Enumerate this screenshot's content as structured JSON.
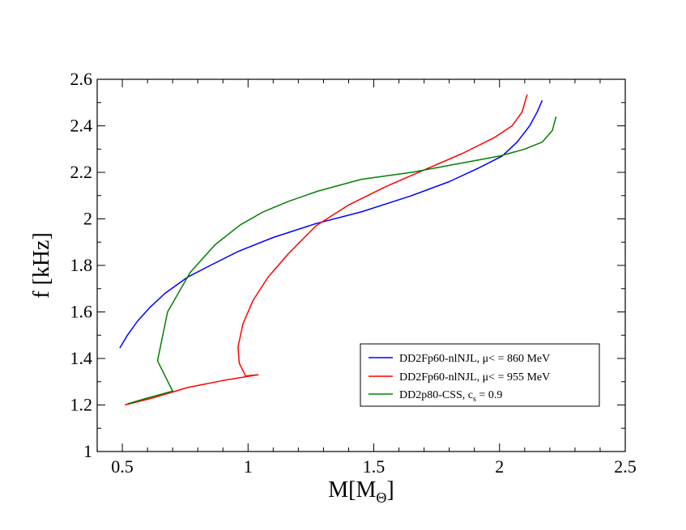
{
  "chart_data": {
    "type": "line",
    "title": "",
    "xlabel": {
      "main": "M[M",
      "sub": "Θ",
      "close": "]"
    },
    "ylabel": "f [kHz]",
    "xlim": [
      0.4,
      2.5
    ],
    "ylim": [
      1.0,
      2.6
    ],
    "xticks": [
      0.5,
      1,
      1.5,
      2,
      2.5
    ],
    "xtick_labels": [
      "0.5",
      "1",
      "1.5",
      "2",
      "2.5"
    ],
    "yticks": [
      1,
      1.2,
      1.4,
      1.6,
      1.8,
      2,
      2.2,
      2.4,
      2.6
    ],
    "ytick_labels": [
      "1",
      "1.2",
      "1.4",
      "1.6",
      "1.8",
      "2",
      "2.2",
      "2.4",
      "2.6"
    ],
    "grid": false,
    "legend_position": "bottom-right",
    "series": [
      {
        "name": "DD2Fp60-nlNJL, μ< = 860 MeV",
        "legend": {
          "main": "DD2Fp60-nlNJL, μ< = 860 MeV"
        },
        "color": "#0000ff",
        "points": [
          [
            0.49,
            1.445
          ],
          [
            0.52,
            1.5
          ],
          [
            0.56,
            1.56
          ],
          [
            0.61,
            1.62
          ],
          [
            0.67,
            1.68
          ],
          [
            0.76,
            1.75
          ],
          [
            0.85,
            1.8
          ],
          [
            0.96,
            1.86
          ],
          [
            1.1,
            1.92
          ],
          [
            1.27,
            1.98
          ],
          [
            1.45,
            2.03
          ],
          [
            1.65,
            2.1
          ],
          [
            1.8,
            2.16
          ],
          [
            1.92,
            2.22
          ],
          [
            2.01,
            2.27
          ],
          [
            2.07,
            2.33
          ],
          [
            2.12,
            2.4
          ],
          [
            2.15,
            2.46
          ],
          [
            2.17,
            2.51
          ]
        ]
      },
      {
        "name": "DD2Fp60-nlNJL, μ< = 955 MeV",
        "legend": {
          "main": "DD2Fp60-nlNJL, μ< = 955 MeV"
        },
        "color": "#ff0000",
        "points": [
          [
            0.51,
            1.2
          ],
          [
            0.62,
            1.23
          ],
          [
            0.76,
            1.275
          ],
          [
            0.9,
            1.305
          ],
          [
            1.04,
            1.33
          ],
          [
            0.99,
            1.325
          ],
          [
            0.965,
            1.38
          ],
          [
            0.96,
            1.45
          ],
          [
            0.98,
            1.55
          ],
          [
            1.02,
            1.65
          ],
          [
            1.08,
            1.75
          ],
          [
            1.16,
            1.85
          ],
          [
            1.27,
            1.97
          ],
          [
            1.4,
            2.06
          ],
          [
            1.55,
            2.14
          ],
          [
            1.7,
            2.21
          ],
          [
            1.85,
            2.28
          ],
          [
            1.98,
            2.35
          ],
          [
            2.05,
            2.4
          ],
          [
            2.09,
            2.46
          ],
          [
            2.11,
            2.535
          ]
        ]
      },
      {
        "name": "DD2p80-CSS, c_s = 0.9",
        "legend": {
          "main": "DD2p80-CSS, c",
          "sub": "s",
          "rest": " = 0.9"
        },
        "color": "#008000",
        "points": [
          [
            0.52,
            1.205
          ],
          [
            0.6,
            1.23
          ],
          [
            0.7,
            1.26
          ],
          [
            0.64,
            1.39
          ],
          [
            0.68,
            1.6
          ],
          [
            0.77,
            1.77
          ],
          [
            0.87,
            1.89
          ],
          [
            0.97,
            1.975
          ],
          [
            1.06,
            2.03
          ],
          [
            1.16,
            2.075
          ],
          [
            1.28,
            2.12
          ],
          [
            1.45,
            2.17
          ],
          [
            1.65,
            2.2
          ],
          [
            1.85,
            2.24
          ],
          [
            2.0,
            2.27
          ],
          [
            2.1,
            2.3
          ],
          [
            2.17,
            2.33
          ],
          [
            2.21,
            2.38
          ],
          [
            2.225,
            2.44
          ]
        ]
      }
    ]
  }
}
